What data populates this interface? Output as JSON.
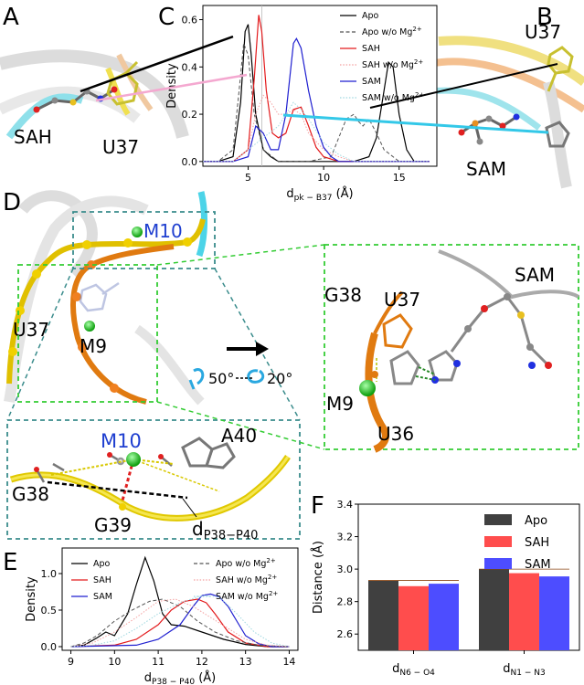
{
  "panels": {
    "A": "A",
    "B": "B",
    "C": "C",
    "D": "D",
    "E": "E",
    "F": "F"
  },
  "molecule_labels": {
    "sah": "SAH",
    "u37_a": "U37",
    "u37_b": "U37",
    "sam_b": "SAM",
    "m10_d": "M10",
    "u37_d": "U37",
    "m9_d": "M9",
    "rot1": "50°",
    "rot2": "20°",
    "g38_z": "G38",
    "u37_z": "U37",
    "sam_z": "SAM",
    "m9_z": "M9",
    "u36_z": "U36",
    "m10_i": "M10",
    "a40_i": "A40",
    "g38_i": "G38",
    "g39_i": "G39",
    "dist_i": "d",
    "dist_i_sub": "P38−P40"
  },
  "colors": {
    "apo": "#000000",
    "sah": "#e31a1c",
    "sam": "#1f1fd0",
    "apo_nomg": "#555555",
    "sah_nomg": "#f4a0a0",
    "sam_nomg": "#9fd8e0",
    "green_frame": "#33cc33",
    "teal_frame": "#3a8c8c",
    "bar_apo": "#404040",
    "bar_sah": "#ff4d4d",
    "bar_sam": "#4d4dff"
  },
  "chart_data": [
    {
      "type": "line",
      "panel": "C",
      "xlabel": "d",
      "xlabel_sub": "pk − B37",
      "xlabel_unit": "(Å)",
      "ylabel": "Density",
      "xlim": [
        2,
        17.5
      ],
      "ylim": [
        -0.02,
        0.66
      ],
      "xticks": [
        "5",
        "10",
        "15"
      ],
      "yticks": [
        "0.0",
        "0.2",
        "0.4",
        "0.6"
      ],
      "legend_position": "top-right",
      "series": [
        {
          "name": "Apo",
          "style": "solid",
          "color": "#000000",
          "x": [
            2,
            3,
            4,
            4.5,
            4.8,
            5,
            5.2,
            5.5,
            6,
            6.5,
            7,
            8,
            10,
            12,
            13,
            13.5,
            14,
            14.3,
            14.6,
            15,
            15.5,
            16,
            17
          ],
          "y": [
            0,
            0,
            0.02,
            0.25,
            0.55,
            0.58,
            0.45,
            0.2,
            0.05,
            0.02,
            0,
            0,
            0,
            0,
            0.02,
            0.1,
            0.3,
            0.42,
            0.4,
            0.2,
            0.05,
            0,
            0
          ]
        },
        {
          "name": "Apo w/o Mg",
          "style": "dashed",
          "color": "#555555",
          "x": [
            2,
            3,
            4,
            4.4,
            4.7,
            5,
            5.4,
            6,
            7,
            9,
            10.5,
            11,
            11.5,
            12,
            12.3,
            12.6,
            13,
            13.5,
            14,
            15,
            17
          ],
          "y": [
            0,
            0,
            0.05,
            0.3,
            0.5,
            0.45,
            0.2,
            0.05,
            0,
            0,
            0.02,
            0.1,
            0.18,
            0.2,
            0.17,
            0.15,
            0.18,
            0.12,
            0.05,
            0,
            0
          ]
        },
        {
          "name": "SAH",
          "style": "solid",
          "color": "#e31a1c",
          "x": [
            2,
            4,
            5,
            5.4,
            5.7,
            5.9,
            6.2,
            6.6,
            7,
            7.5,
            8,
            8.5,
            9,
            9.5,
            10,
            11,
            17
          ],
          "y": [
            0,
            0,
            0.05,
            0.35,
            0.62,
            0.55,
            0.3,
            0.12,
            0.1,
            0.12,
            0.22,
            0.23,
            0.15,
            0.06,
            0.02,
            0,
            0
          ]
        },
        {
          "name": "SAH w/o Mg",
          "style": "dotted",
          "color": "#f4a0a0",
          "x": [
            2,
            4,
            5,
            5.5,
            6,
            6.5,
            7,
            7.5,
            8,
            8.5,
            9,
            10,
            11,
            12,
            17
          ],
          "y": [
            0,
            0,
            0.05,
            0.2,
            0.28,
            0.25,
            0.2,
            0.2,
            0.22,
            0.2,
            0.12,
            0.05,
            0.02,
            0,
            0
          ]
        },
        {
          "name": "SAM",
          "style": "solid",
          "color": "#1f1fd0",
          "x": [
            2,
            4,
            5,
            5.5,
            6,
            6.5,
            7,
            7.5,
            8,
            8.2,
            8.5,
            9,
            9.5,
            10,
            10.5,
            11,
            17
          ],
          "y": [
            0,
            0,
            0.02,
            0.15,
            0.12,
            0.05,
            0.05,
            0.2,
            0.5,
            0.52,
            0.48,
            0.3,
            0.15,
            0.06,
            0.02,
            0,
            0
          ]
        },
        {
          "name": "SAM w/o Mg",
          "style": "dotted",
          "color": "#9fd8e0",
          "x": [
            2,
            4,
            5,
            6,
            7,
            7.5,
            8,
            8.5,
            9,
            10,
            11,
            12,
            17
          ],
          "y": [
            0,
            0,
            0.05,
            0.1,
            0.15,
            0.2,
            0.25,
            0.22,
            0.18,
            0.08,
            0.03,
            0,
            0
          ]
        }
      ],
      "legend": [
        "Apo",
        "Apo w/o Mg$^{2+}$",
        "SAH",
        "SAH w/o Mg$^{2+}$",
        "SAM",
        "SAM w/o Mg$^{2+}$"
      ]
    },
    {
      "type": "line",
      "panel": "E",
      "xlabel": "d",
      "xlabel_sub": "P38 − P40",
      "xlabel_unit": "(Å)",
      "ylabel": "Density",
      "xlim": [
        8.8,
        14.2
      ],
      "ylim": [
        -0.05,
        1.35
      ],
      "xticks": [
        "9",
        "10",
        "11",
        "12",
        "13",
        "14"
      ],
      "yticks": [
        "0.0",
        "0.5",
        "1.0"
      ],
      "legend_position": "top",
      "series": [
        {
          "name": "Apo",
          "style": "solid",
          "color": "#000000",
          "x": [
            9,
            9.3,
            9.6,
            9.8,
            10,
            10.3,
            10.5,
            10.7,
            10.9,
            11.1,
            11.3,
            11.6,
            12,
            12.5,
            13,
            13.5,
            14
          ],
          "y": [
            0,
            0.02,
            0.12,
            0.2,
            0.15,
            0.45,
            0.85,
            1.22,
            0.9,
            0.45,
            0.3,
            0.28,
            0.2,
            0.1,
            0.03,
            0,
            0
          ]
        },
        {
          "name": "SAH",
          "style": "solid",
          "color": "#e31a1c",
          "x": [
            9,
            10,
            10.5,
            11,
            11.3,
            11.6,
            11.9,
            12.1,
            12.3,
            12.6,
            13,
            13.5,
            14
          ],
          "y": [
            0,
            0.02,
            0.1,
            0.3,
            0.5,
            0.62,
            0.65,
            0.6,
            0.45,
            0.2,
            0.05,
            0,
            0
          ]
        },
        {
          "name": "SAM",
          "style": "solid",
          "color": "#1f1fd0",
          "x": [
            9,
            10.5,
            11,
            11.5,
            11.8,
            12,
            12.2,
            12.4,
            12.6,
            12.8,
            13,
            13.3,
            13.6,
            14
          ],
          "y": [
            0,
            0.02,
            0.1,
            0.3,
            0.55,
            0.7,
            0.72,
            0.68,
            0.55,
            0.35,
            0.15,
            0.04,
            0,
            0
          ]
        },
        {
          "name": "Apo w/o Mg",
          "style": "dashed",
          "color": "#555555",
          "x": [
            9,
            9.3,
            9.6,
            10,
            10.4,
            10.8,
            11.1,
            11.5,
            11.9,
            12.3,
            12.8,
            13.3,
            14
          ],
          "y": [
            0,
            0.05,
            0.15,
            0.35,
            0.5,
            0.62,
            0.65,
            0.55,
            0.35,
            0.2,
            0.08,
            0.02,
            0
          ]
        },
        {
          "name": "SAH w/o Mg",
          "style": "dotted",
          "color": "#f4a0a0",
          "x": [
            9,
            9.5,
            10,
            10.5,
            11,
            11.4,
            11.8,
            12.2,
            12.6,
            13,
            13.5,
            14
          ],
          "y": [
            0,
            0.05,
            0.2,
            0.4,
            0.62,
            0.65,
            0.55,
            0.4,
            0.25,
            0.1,
            0.02,
            0
          ]
        },
        {
          "name": "SAM w/o Mg",
          "style": "dotted",
          "color": "#9fd8e0",
          "x": [
            9,
            9.5,
            10,
            10.5,
            11,
            11.5,
            12,
            12.4,
            12.8,
            13.2,
            13.6,
            14
          ],
          "y": [
            0,
            0.02,
            0.08,
            0.25,
            0.45,
            0.6,
            0.7,
            0.68,
            0.45,
            0.2,
            0.05,
            0
          ]
        }
      ],
      "legend": [
        "Apo",
        "SAH",
        "SAM",
        "Apo w/o Mg$^{2+}$",
        "SAH w/o Mg$^{2+}$",
        "SAM w/o Mg$^{2+}$"
      ]
    },
    {
      "type": "bar",
      "panel": "F",
      "ylabel": "Distance (Å)",
      "ylim": [
        2.5,
        3.4
      ],
      "yticks": [
        "2.6",
        "2.8",
        "3.0",
        "3.2",
        "3.4"
      ],
      "categories": [
        "d",
        "d"
      ],
      "category_subs": [
        "N6 − O4",
        "N1 − N3"
      ],
      "legend_position": "top-right",
      "series": [
        {
          "name": "Apo",
          "color": "#404040",
          "values": [
            2.93,
            3.0
          ]
        },
        {
          "name": "SAH",
          "color": "#ff4d4d",
          "values": [
            2.895,
            2.975
          ]
        },
        {
          "name": "SAM",
          "color": "#4d4dff",
          "values": [
            2.91,
            2.955
          ]
        }
      ]
    }
  ]
}
